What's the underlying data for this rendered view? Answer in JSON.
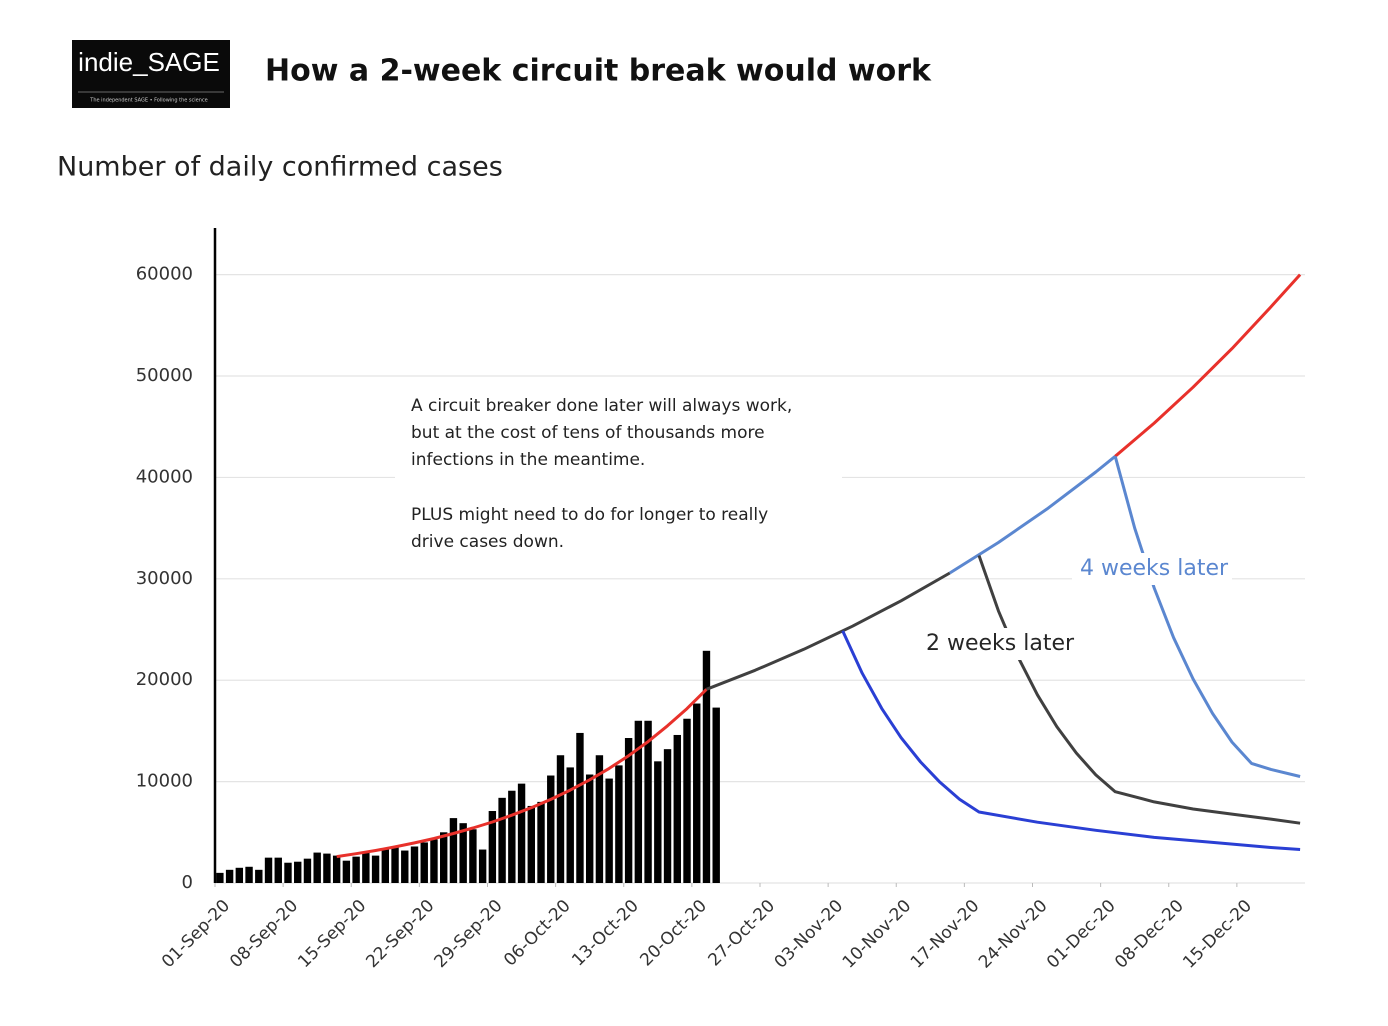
{
  "chart_data": {
    "type": "combo",
    "logo": "indie_SAGE",
    "logo_tagline": "The independent SAGE • Following the science",
    "title": "How a 2-week circuit break would work",
    "subtitle": "Number of daily confirmed cases",
    "ylim": [
      0,
      64600
    ],
    "yticks": [
      0,
      10000,
      20000,
      30000,
      40000,
      50000,
      60000
    ],
    "xlim": [
      "01-Sep-20",
      "22-Dec-20"
    ],
    "xticks": [
      "01-Sep-20",
      "08-Sep-20",
      "15-Sep-20",
      "22-Sep-20",
      "29-Sep-20",
      "06-Oct-20",
      "13-Oct-20",
      "20-Oct-20",
      "27-Oct-20",
      "03-Nov-20",
      "10-Nov-20",
      "17-Nov-20",
      "24-Nov-20",
      "01-Dec-20",
      "08-Dec-20",
      "15-Dec-20"
    ],
    "grid": true,
    "note": [
      "A circuit breaker done later will always work,",
      "but at the cost of tens of thousands more",
      "infections in the meantime.",
      "PLUS might need to do for longer to really",
      "drive cases down."
    ],
    "annotations": [
      {
        "text": "2 weeks later",
        "color": "#262626"
      },
      {
        "text": "4 weeks later",
        "color": "#5b87d0"
      }
    ],
    "series": [
      {
        "type": "bar",
        "color": "#000000",
        "x": [
          "01-Sep-20",
          "02-Sep-20",
          "03-Sep-20",
          "04-Sep-20",
          "05-Sep-20",
          "06-Sep-20",
          "07-Sep-20",
          "08-Sep-20",
          "09-Sep-20",
          "10-Sep-20",
          "11-Sep-20",
          "12-Sep-20",
          "13-Sep-20",
          "14-Sep-20",
          "15-Sep-20",
          "16-Sep-20",
          "17-Sep-20",
          "18-Sep-20",
          "19-Sep-20",
          "20-Sep-20",
          "21-Sep-20",
          "22-Sep-20",
          "23-Sep-20",
          "24-Sep-20",
          "25-Sep-20",
          "26-Sep-20",
          "27-Sep-20",
          "28-Sep-20",
          "29-Sep-20",
          "30-Sep-20",
          "01-Oct-20",
          "02-Oct-20",
          "03-Oct-20",
          "04-Oct-20",
          "05-Oct-20",
          "06-Oct-20",
          "07-Oct-20",
          "08-Oct-20",
          "09-Oct-20",
          "10-Oct-20",
          "11-Oct-20",
          "12-Oct-20",
          "13-Oct-20",
          "14-Oct-20",
          "15-Oct-20",
          "16-Oct-20",
          "17-Oct-20",
          "18-Oct-20",
          "19-Oct-20",
          "20-Oct-20",
          "21-Oct-20",
          "22-Oct-20"
        ],
        "values": [
          1000,
          1300,
          1500,
          1600,
          1300,
          2500,
          2500,
          2000,
          2100,
          2400,
          3000,
          2900,
          2700,
          2200,
          2600,
          3000,
          2700,
          3300,
          3500,
          3200,
          3600,
          4000,
          4300,
          5000,
          6400,
          5900,
          5300,
          3300,
          7100,
          8400,
          9100,
          9800,
          7600,
          8000,
          10600,
          12600,
          11400,
          14800,
          10700,
          12600,
          10300,
          11600,
          14300,
          16000,
          16000,
          12000,
          13200,
          14600,
          16200,
          17700,
          22900,
          17300
        ]
      },
      {
        "type": "line",
        "color": "#e8312b",
        "x": [
          "13-Sep-20",
          "15-Sep-20",
          "17-Sep-20",
          "19-Sep-20",
          "21-Sep-20",
          "23-Sep-20",
          "25-Sep-20",
          "27-Sep-20",
          "29-Sep-20",
          "01-Oct-20",
          "03-Oct-20",
          "05-Oct-20",
          "07-Oct-20",
          "09-Oct-20",
          "11-Oct-20",
          "13-Oct-20",
          "15-Oct-20",
          "17-Oct-20",
          "19-Oct-20",
          "21-Oct-20"
        ],
        "values": [
          2600,
          2890,
          3210,
          3560,
          3950,
          4390,
          4880,
          5420,
          6020,
          6690,
          7430,
          8250,
          9160,
          10180,
          11300,
          12560,
          13950,
          15500,
          17200,
          19100
        ]
      },
      {
        "type": "line",
        "color": "#404040",
        "x": [
          "21-Oct-20",
          "26-Oct-20",
          "31-Oct-20",
          "05-Nov-20",
          "10-Nov-20",
          "15-Nov-20"
        ],
        "values": [
          19100,
          20980,
          23050,
          25330,
          27830,
          30570
        ]
      },
      {
        "type": "line",
        "color": "#5b87d0",
        "x": [
          "15-Nov-20",
          "20-Nov-20",
          "25-Nov-20",
          "30-Nov-20",
          "02-Dec-20"
        ],
        "values": [
          30570,
          33580,
          36900,
          40540,
          42080
        ]
      },
      {
        "type": "line",
        "color": "#e8312b",
        "x": [
          "02-Dec-20",
          "06-Dec-20",
          "10-Dec-20",
          "14-Dec-20",
          "18-Dec-20",
          "21-Dec-20"
        ],
        "values": [
          42080,
          45360,
          48900,
          52710,
          56820,
          60000
        ]
      },
      {
        "type": "line",
        "color": "#2a3fd4",
        "x": [
          "04-Nov-20",
          "06-Nov-20",
          "08-Nov-20",
          "10-Nov-20",
          "12-Nov-20",
          "14-Nov-20",
          "16-Nov-20",
          "18-Nov-20",
          "24-Nov-20",
          "30-Nov-20",
          "06-Dec-20",
          "12-Dec-20",
          "18-Dec-20",
          "21-Dec-20"
        ],
        "values": [
          24860,
          20690,
          17220,
          14330,
          11930,
          9930,
          8260,
          7000,
          6000,
          5200,
          4500,
          4000,
          3500,
          3300
        ]
      },
      {
        "type": "line",
        "color": "#404040",
        "x": [
          "18-Nov-20",
          "20-Nov-20",
          "22-Nov-20",
          "24-Nov-20",
          "26-Nov-20",
          "28-Nov-20",
          "30-Nov-20",
          "02-Dec-20",
          "06-Dec-20",
          "10-Dec-20",
          "14-Dec-20",
          "18-Dec-20",
          "21-Dec-20"
        ],
        "values": [
          32300,
          26850,
          22320,
          18560,
          15430,
          12820,
          10660,
          9000,
          8000,
          7300,
          6800,
          6300,
          5900
        ]
      },
      {
        "type": "line",
        "color": "#5b87d0",
        "x": [
          "02-Dec-20",
          "04-Dec-20",
          "06-Dec-20",
          "08-Dec-20",
          "10-Dec-20",
          "12-Dec-20",
          "14-Dec-20",
          "16-Dec-20",
          "18-Dec-20",
          "21-Dec-20"
        ],
        "values": [
          42080,
          35000,
          29090,
          24190,
          20120,
          16730,
          13900,
          11800,
          11200,
          10500
        ]
      }
    ]
  }
}
